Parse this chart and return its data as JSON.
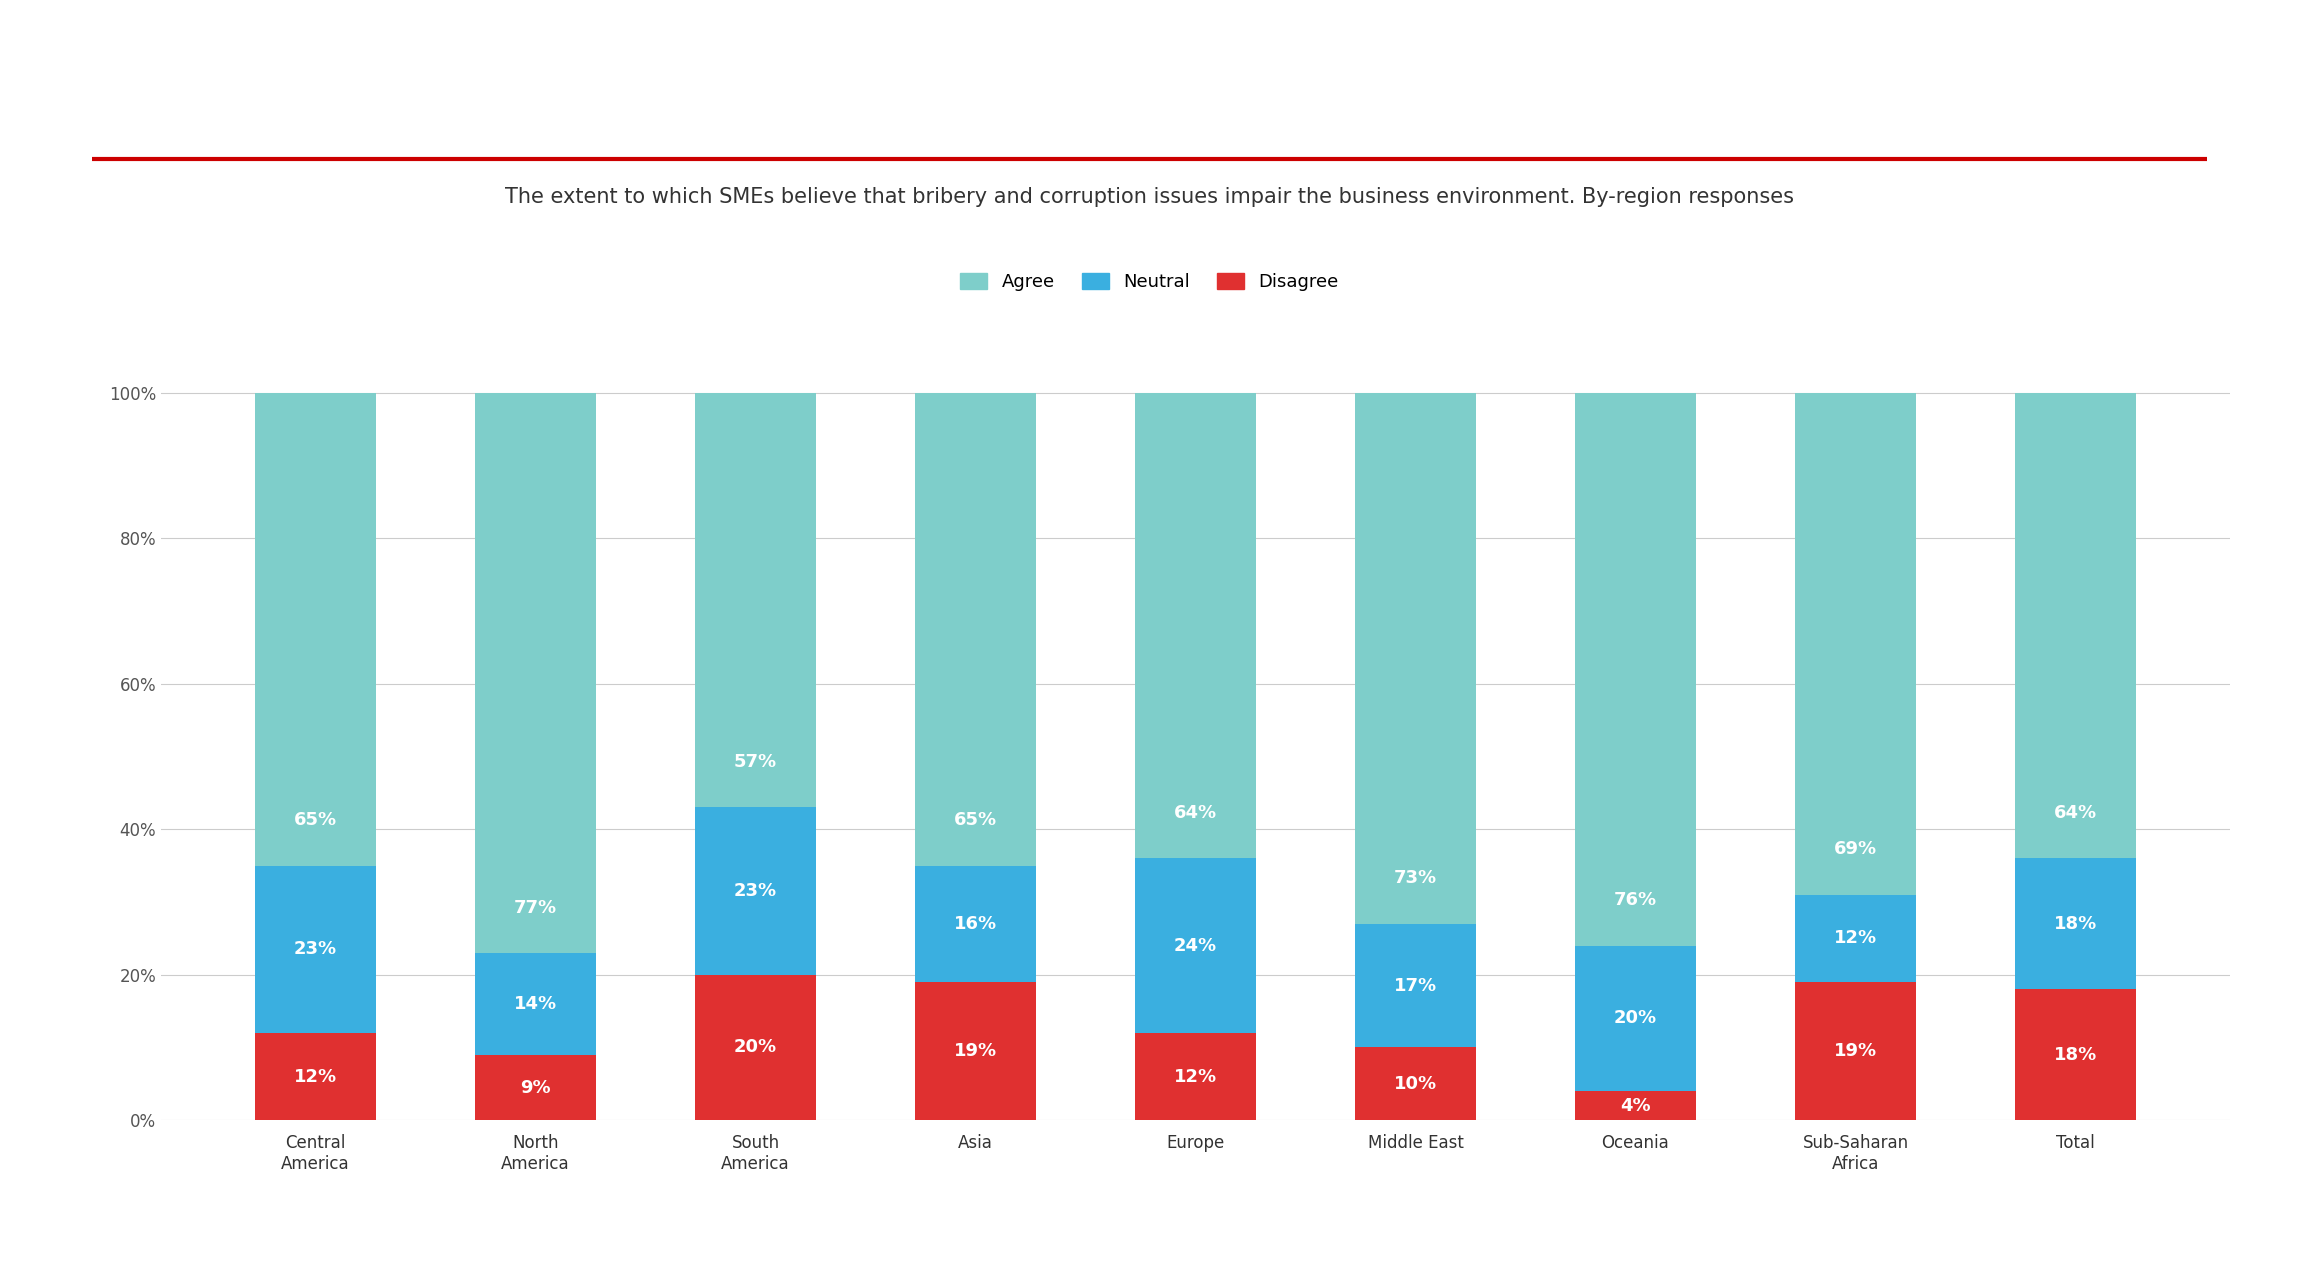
{
  "title": "The extent to which SMEs believe that bribery and corruption issues impair the business environment. By-region responses",
  "categories": [
    "Central\nAmerica",
    "North\nAmerica",
    "South\nAmerica",
    "Asia",
    "Europe",
    "Middle East",
    "Oceania",
    "Sub-Saharan\nAfrica",
    "Total"
  ],
  "agree": [
    65,
    77,
    57,
    65,
    64,
    73,
    76,
    69,
    64
  ],
  "neutral": [
    23,
    14,
    23,
    16,
    24,
    17,
    20,
    12,
    18
  ],
  "disagree": [
    12,
    9,
    20,
    19,
    12,
    10,
    4,
    19,
    18
  ],
  "agree_color": "#7ECECA",
  "neutral_color": "#3AAFE0",
  "disagree_color": "#E03030",
  "background_color": "#FFFFFF",
  "title_color": "#333333",
  "bar_text_color": "#FFFFFF",
  "legend_labels": [
    "Agree",
    "Neutral",
    "Disagree"
  ],
  "ytick_labels": [
    "0%",
    "20%",
    "40%",
    "60%",
    "80%",
    "100%"
  ],
  "ytick_values": [
    0,
    20,
    40,
    60,
    80,
    100
  ],
  "title_fontsize": 15,
  "tick_fontsize": 12,
  "bar_text_fontsize": 13,
  "legend_fontsize": 13,
  "bar_width": 0.55,
  "red_line_color": "#CC0000",
  "grid_color": "#CCCCCC"
}
